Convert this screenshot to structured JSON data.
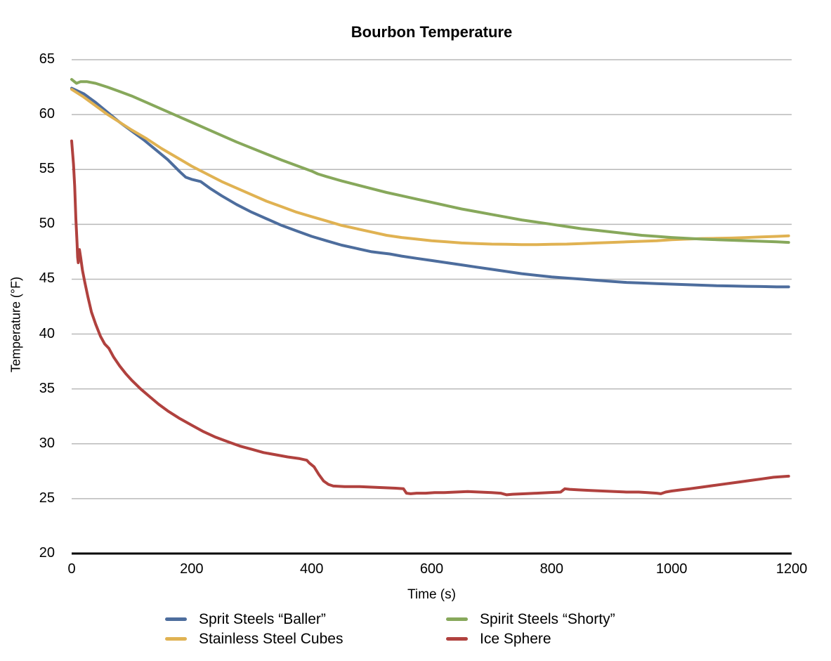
{
  "chart_data": {
    "type": "line",
    "title": "Bourbon Temperature",
    "xlabel": "Time (s)",
    "ylabel": "Temperature (°F)",
    "xlim": [
      0,
      1200
    ],
    "ylim": [
      20,
      65
    ],
    "grid": true,
    "legend_position": "bottom",
    "grid_color": "#b9b9b9",
    "axis_color": "#000000",
    "xticks": [
      "0",
      "200",
      "400",
      "600",
      "800",
      "1000",
      "1200"
    ],
    "yticks": [
      "20",
      "25",
      "30",
      "35",
      "40",
      "45",
      "50",
      "55",
      "60",
      "65"
    ],
    "legend_order": [
      0,
      2,
      1,
      3
    ],
    "series": [
      {
        "name": "Sprit Steels “Baller”",
        "color": "#4d6d9d",
        "points": [
          [
            0,
            62.4
          ],
          [
            20,
            61.9
          ],
          [
            40,
            61.1
          ],
          [
            60,
            60.2
          ],
          [
            80,
            59.3
          ],
          [
            100,
            58.5
          ],
          [
            120,
            57.7
          ],
          [
            140,
            56.8
          ],
          [
            160,
            55.9
          ],
          [
            180,
            54.8
          ],
          [
            190,
            54.3
          ],
          [
            200,
            54.1
          ],
          [
            215,
            53.9
          ],
          [
            230,
            53.3
          ],
          [
            250,
            52.6
          ],
          [
            275,
            51.8
          ],
          [
            300,
            51.1
          ],
          [
            325,
            50.5
          ],
          [
            350,
            49.9
          ],
          [
            375,
            49.4
          ],
          [
            400,
            48.9
          ],
          [
            425,
            48.5
          ],
          [
            450,
            48.1
          ],
          [
            475,
            47.8
          ],
          [
            500,
            47.5
          ],
          [
            515,
            47.4
          ],
          [
            530,
            47.3
          ],
          [
            550,
            47.1
          ],
          [
            575,
            46.9
          ],
          [
            600,
            46.7
          ],
          [
            625,
            46.5
          ],
          [
            650,
            46.3
          ],
          [
            675,
            46.1
          ],
          [
            700,
            45.9
          ],
          [
            725,
            45.7
          ],
          [
            750,
            45.5
          ],
          [
            775,
            45.35
          ],
          [
            800,
            45.2
          ],
          [
            825,
            45.1
          ],
          [
            850,
            45.0
          ],
          [
            875,
            44.9
          ],
          [
            900,
            44.8
          ],
          [
            925,
            44.7
          ],
          [
            950,
            44.65
          ],
          [
            975,
            44.6
          ],
          [
            1000,
            44.55
          ],
          [
            1025,
            44.5
          ],
          [
            1050,
            44.45
          ],
          [
            1075,
            44.4
          ],
          [
            1100,
            44.38
          ],
          [
            1125,
            44.35
          ],
          [
            1150,
            44.33
          ],
          [
            1175,
            44.3
          ],
          [
            1195,
            44.3
          ]
        ]
      },
      {
        "name": "Stainless Steel Cubes",
        "color": "#e0b252",
        "points": [
          [
            0,
            62.3
          ],
          [
            20,
            61.6
          ],
          [
            40,
            60.8
          ],
          [
            60,
            60.0
          ],
          [
            80,
            59.3
          ],
          [
            100,
            58.6
          ],
          [
            125,
            57.8
          ],
          [
            150,
            56.9
          ],
          [
            175,
            56.1
          ],
          [
            200,
            55.3
          ],
          [
            225,
            54.6
          ],
          [
            250,
            53.9
          ],
          [
            275,
            53.3
          ],
          [
            300,
            52.7
          ],
          [
            325,
            52.1
          ],
          [
            350,
            51.6
          ],
          [
            375,
            51.1
          ],
          [
            400,
            50.7
          ],
          [
            425,
            50.3
          ],
          [
            450,
            49.9
          ],
          [
            475,
            49.6
          ],
          [
            500,
            49.3
          ],
          [
            525,
            49.0
          ],
          [
            550,
            48.8
          ],
          [
            575,
            48.65
          ],
          [
            600,
            48.5
          ],
          [
            625,
            48.4
          ],
          [
            650,
            48.3
          ],
          [
            675,
            48.25
          ],
          [
            700,
            48.2
          ],
          [
            725,
            48.18
          ],
          [
            750,
            48.15
          ],
          [
            775,
            48.15
          ],
          [
            800,
            48.18
          ],
          [
            825,
            48.2
          ],
          [
            850,
            48.25
          ],
          [
            875,
            48.3
          ],
          [
            900,
            48.35
          ],
          [
            925,
            48.4
          ],
          [
            950,
            48.45
          ],
          [
            975,
            48.5
          ],
          [
            1000,
            48.6
          ],
          [
            1025,
            48.65
          ],
          [
            1050,
            48.7
          ],
          [
            1075,
            48.72
          ],
          [
            1100,
            48.75
          ],
          [
            1125,
            48.8
          ],
          [
            1150,
            48.85
          ],
          [
            1175,
            48.9
          ],
          [
            1195,
            48.95
          ]
        ]
      },
      {
        "name": "Spirit Steels “Shorty”",
        "color": "#87a85b",
        "points": [
          [
            0,
            63.2
          ],
          [
            8,
            62.85
          ],
          [
            15,
            63.0
          ],
          [
            25,
            63.0
          ],
          [
            40,
            62.85
          ],
          [
            60,
            62.5
          ],
          [
            80,
            62.1
          ],
          [
            100,
            61.7
          ],
          [
            125,
            61.1
          ],
          [
            150,
            60.5
          ],
          [
            175,
            59.9
          ],
          [
            200,
            59.3
          ],
          [
            225,
            58.7
          ],
          [
            250,
            58.1
          ],
          [
            275,
            57.5
          ],
          [
            300,
            56.95
          ],
          [
            325,
            56.4
          ],
          [
            350,
            55.85
          ],
          [
            375,
            55.35
          ],
          [
            400,
            54.85
          ],
          [
            410,
            54.6
          ],
          [
            425,
            54.35
          ],
          [
            450,
            53.95
          ],
          [
            475,
            53.6
          ],
          [
            500,
            53.25
          ],
          [
            525,
            52.9
          ],
          [
            550,
            52.6
          ],
          [
            575,
            52.3
          ],
          [
            600,
            52.0
          ],
          [
            625,
            51.7
          ],
          [
            650,
            51.4
          ],
          [
            675,
            51.15
          ],
          [
            700,
            50.9
          ],
          [
            725,
            50.65
          ],
          [
            750,
            50.4
          ],
          [
            775,
            50.2
          ],
          [
            800,
            50.0
          ],
          [
            825,
            49.8
          ],
          [
            850,
            49.6
          ],
          [
            875,
            49.45
          ],
          [
            900,
            49.3
          ],
          [
            925,
            49.15
          ],
          [
            950,
            49.0
          ],
          [
            975,
            48.9
          ],
          [
            1000,
            48.8
          ],
          [
            1025,
            48.72
          ],
          [
            1050,
            48.65
          ],
          [
            1075,
            48.6
          ],
          [
            1100,
            48.55
          ],
          [
            1125,
            48.5
          ],
          [
            1150,
            48.45
          ],
          [
            1175,
            48.4
          ],
          [
            1195,
            48.35
          ]
        ]
      },
      {
        "name": "Ice Sphere",
        "color": "#b0413e",
        "points": [
          [
            0,
            57.6
          ],
          [
            3,
            55.5
          ],
          [
            5,
            53.5
          ],
          [
            7,
            50.5
          ],
          [
            9,
            48.3
          ],
          [
            10,
            47.0
          ],
          [
            11,
            46.5
          ],
          [
            13,
            47.7
          ],
          [
            15,
            47.0
          ],
          [
            18,
            45.8
          ],
          [
            22,
            44.7
          ],
          [
            27,
            43.4
          ],
          [
            33,
            42.0
          ],
          [
            40,
            40.9
          ],
          [
            48,
            39.8
          ],
          [
            55,
            39.1
          ],
          [
            62,
            38.7
          ],
          [
            70,
            37.9
          ],
          [
            80,
            37.1
          ],
          [
            90,
            36.4
          ],
          [
            100,
            35.8
          ],
          [
            115,
            35.0
          ],
          [
            130,
            34.3
          ],
          [
            145,
            33.6
          ],
          [
            160,
            33.0
          ],
          [
            180,
            32.3
          ],
          [
            200,
            31.7
          ],
          [
            220,
            31.1
          ],
          [
            240,
            30.6
          ],
          [
            260,
            30.2
          ],
          [
            280,
            29.8
          ],
          [
            300,
            29.5
          ],
          [
            320,
            29.2
          ],
          [
            340,
            29.0
          ],
          [
            360,
            28.8
          ],
          [
            380,
            28.65
          ],
          [
            392,
            28.5
          ],
          [
            396,
            28.25
          ],
          [
            404,
            27.9
          ],
          [
            412,
            27.2
          ],
          [
            420,
            26.6
          ],
          [
            428,
            26.3
          ],
          [
            436,
            26.15
          ],
          [
            455,
            26.1
          ],
          [
            480,
            26.1
          ],
          [
            500,
            26.05
          ],
          [
            520,
            26.0
          ],
          [
            540,
            25.95
          ],
          [
            553,
            25.9
          ],
          [
            558,
            25.5
          ],
          [
            565,
            25.45
          ],
          [
            575,
            25.5
          ],
          [
            590,
            25.5
          ],
          [
            605,
            25.55
          ],
          [
            620,
            25.55
          ],
          [
            640,
            25.6
          ],
          [
            660,
            25.65
          ],
          [
            680,
            25.6
          ],
          [
            700,
            25.55
          ],
          [
            715,
            25.5
          ],
          [
            725,
            25.35
          ],
          [
            735,
            25.4
          ],
          [
            755,
            25.45
          ],
          [
            775,
            25.5
          ],
          [
            795,
            25.55
          ],
          [
            815,
            25.6
          ],
          [
            822,
            25.9
          ],
          [
            830,
            25.85
          ],
          [
            845,
            25.8
          ],
          [
            865,
            25.75
          ],
          [
            885,
            25.7
          ],
          [
            905,
            25.65
          ],
          [
            925,
            25.6
          ],
          [
            945,
            25.6
          ],
          [
            960,
            25.55
          ],
          [
            975,
            25.5
          ],
          [
            982,
            25.45
          ],
          [
            990,
            25.6
          ],
          [
            1000,
            25.7
          ],
          [
            1015,
            25.8
          ],
          [
            1030,
            25.9
          ],
          [
            1050,
            26.05
          ],
          [
            1070,
            26.2
          ],
          [
            1090,
            26.35
          ],
          [
            1110,
            26.5
          ],
          [
            1130,
            26.65
          ],
          [
            1150,
            26.8
          ],
          [
            1170,
            26.95
          ],
          [
            1195,
            27.05
          ]
        ]
      }
    ]
  }
}
